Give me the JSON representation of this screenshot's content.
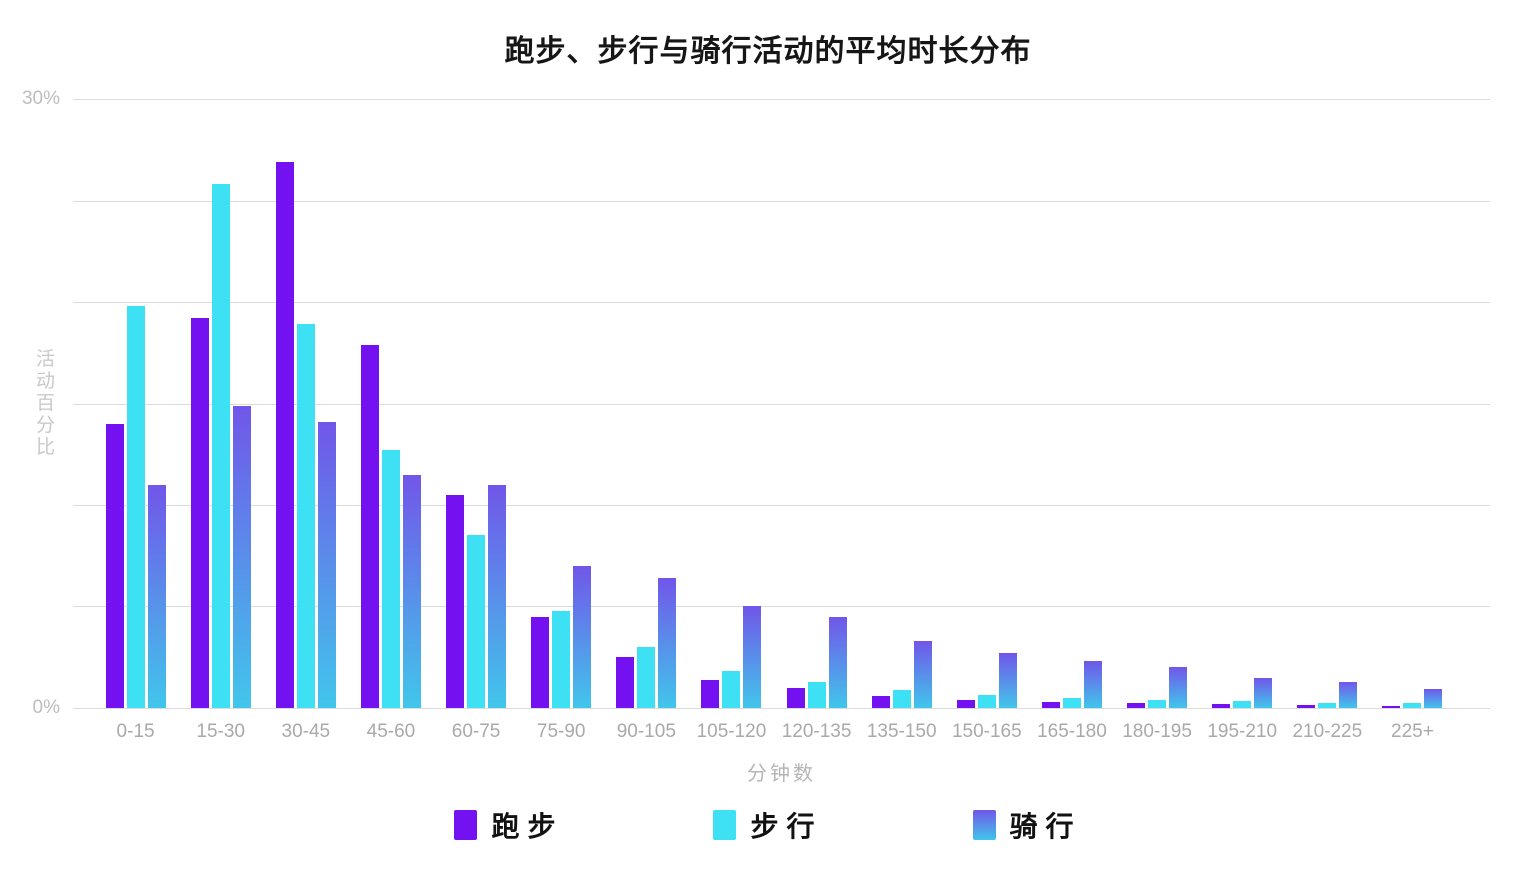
{
  "title": "跑步、步行与骑行活动的平均时长分布",
  "y_axis": {
    "title": "活动百分比",
    "top_label": "30%",
    "bottom_label": "0%",
    "max": 30,
    "min": 0,
    "gridline_step": 5
  },
  "x_axis": {
    "title": "分钟数"
  },
  "chart_data": {
    "type": "bar",
    "title": "跑步、步行与骑行活动的平均时长分布",
    "xlabel": "分钟数",
    "ylabel": "活动百分比",
    "ylim": [
      0,
      30
    ],
    "grid": true,
    "legend_position": "bottom",
    "categories": [
      "0-15",
      "15-30",
      "30-45",
      "45-60",
      "60-75",
      "75-90",
      "90-105",
      "105-120",
      "120-135",
      "135-150",
      "150-165",
      "165-180",
      "180-195",
      "195-210",
      "210-225",
      "225+"
    ],
    "series": [
      {
        "name": "跑步",
        "key": "run",
        "color": "#7311F0",
        "values": [
          14.0,
          19.2,
          26.9,
          17.9,
          10.5,
          4.5,
          2.5,
          1.4,
          1.0,
          0.6,
          0.4,
          0.3,
          0.25,
          0.2,
          0.15,
          0.1
        ]
      },
      {
        "name": "步行",
        "key": "walk",
        "color": "#3EE0F4",
        "values": [
          19.8,
          25.8,
          18.9,
          12.7,
          8.5,
          4.8,
          3.0,
          1.8,
          1.3,
          0.9,
          0.65,
          0.5,
          0.4,
          0.35,
          0.25,
          0.25
        ]
      },
      {
        "name": "骑行",
        "key": "bike",
        "color_top": "#7156E9",
        "color_bottom": "#41C6EB",
        "values": [
          11.0,
          14.9,
          14.1,
          11.5,
          11.0,
          7.0,
          6.4,
          5.0,
          4.5,
          3.3,
          2.7,
          2.3,
          2.0,
          1.5,
          1.3,
          0.95
        ]
      }
    ]
  }
}
